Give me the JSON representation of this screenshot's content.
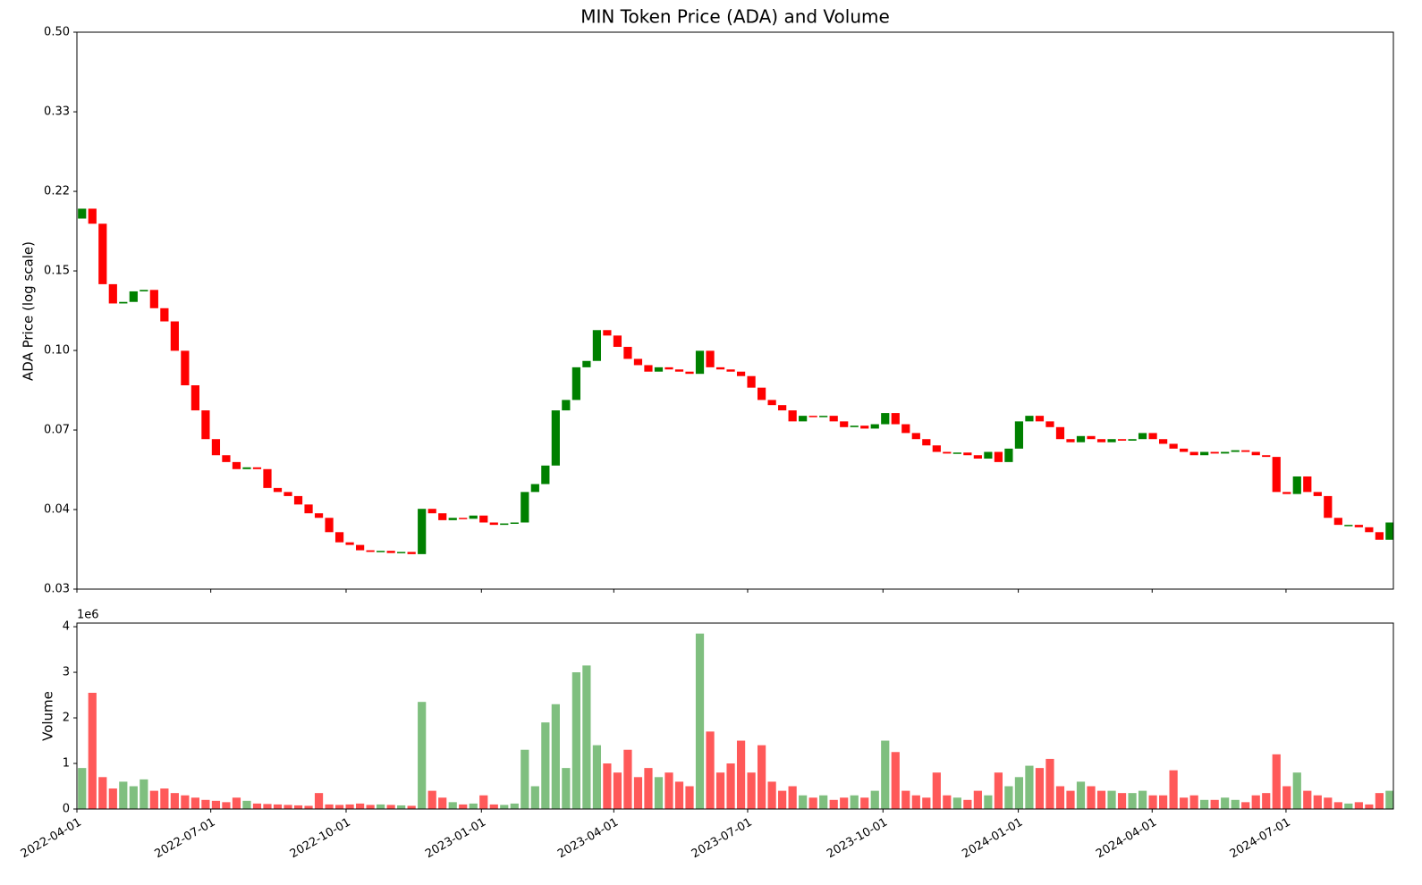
{
  "chart_data": {
    "type": "candlestick",
    "title": "MIN Token Price (ADA) and Volume",
    "ylabel": "ADA Price (log scale)",
    "log_scale": true,
    "up_color": "green",
    "down_color": "red",
    "xlim": [
      "2022-04-01",
      "2024-09-12"
    ],
    "xticks": [
      "2022-04-01",
      "2022-07-01",
      "2022-10-01",
      "2023-01-01",
      "2023-04-01",
      "2023-07-01",
      "2023-10-01",
      "2024-01-01",
      "2024-04-01",
      "2024-07-01"
    ],
    "ylim": [
      0.03,
      0.5
    ],
    "yticks": [
      0.03,
      {
        "value": 0.04484,
        "label": "0.04"
      },
      {
        "value": 0.06701,
        "label": "0.07"
      },
      {
        "value": 0.10016,
        "label": "0.10"
      },
      {
        "value": 0.1497,
        "label": "0.15"
      },
      {
        "value": 0.22374,
        "label": "0.22"
      },
      {
        "value": 0.33441,
        "label": "0.33"
      },
      {
        "value": 0.5,
        "label": "0.50"
      }
    ],
    "x": [
      "2022-04-01",
      "2022-04-08",
      "2022-04-15",
      "2022-04-22",
      "2022-04-29",
      "2022-05-06",
      "2022-05-13",
      "2022-05-20",
      "2022-05-27",
      "2022-06-03",
      "2022-06-10",
      "2022-06-17",
      "2022-06-24",
      "2022-07-01",
      "2022-07-08",
      "2022-07-15",
      "2022-07-22",
      "2022-07-29",
      "2022-08-05",
      "2022-08-12",
      "2022-08-19",
      "2022-08-26",
      "2022-09-02",
      "2022-09-09",
      "2022-09-16",
      "2022-09-23",
      "2022-09-30",
      "2022-10-07",
      "2022-10-14",
      "2022-10-21",
      "2022-10-28",
      "2022-11-04",
      "2022-11-11",
      "2022-11-18",
      "2022-11-25",
      "2022-12-02",
      "2022-12-09",
      "2022-12-16",
      "2022-12-23",
      "2022-12-30",
      "2023-01-06",
      "2023-01-13",
      "2023-01-20",
      "2023-01-27",
      "2023-02-03",
      "2023-02-10",
      "2023-02-17",
      "2023-02-24",
      "2023-03-03",
      "2023-03-10",
      "2023-03-17",
      "2023-03-24",
      "2023-03-31",
      "2023-04-07",
      "2023-04-14",
      "2023-04-21",
      "2023-04-28",
      "2023-05-05",
      "2023-05-12",
      "2023-05-19",
      "2023-05-26",
      "2023-06-02",
      "2023-06-09",
      "2023-06-16",
      "2023-06-23",
      "2023-06-30",
      "2023-07-07",
      "2023-07-14",
      "2023-07-21",
      "2023-07-28",
      "2023-08-04",
      "2023-08-11",
      "2023-08-18",
      "2023-08-25",
      "2023-09-01",
      "2023-09-08",
      "2023-09-15",
      "2023-09-22",
      "2023-09-29",
      "2023-10-06",
      "2023-10-13",
      "2023-10-20",
      "2023-10-27",
      "2023-11-03",
      "2023-11-10",
      "2023-11-17",
      "2023-11-24",
      "2023-12-01",
      "2023-12-08",
      "2023-12-15",
      "2023-12-22",
      "2023-12-29",
      "2024-01-05",
      "2024-01-12",
      "2024-01-19",
      "2024-01-26",
      "2024-02-02",
      "2024-02-09",
      "2024-02-16",
      "2024-02-23",
      "2024-03-01",
      "2024-03-08",
      "2024-03-15",
      "2024-03-22",
      "2024-03-29",
      "2024-04-05",
      "2024-04-12",
      "2024-04-19",
      "2024-04-26",
      "2024-05-03",
      "2024-05-10",
      "2024-05-17",
      "2024-05-24",
      "2024-05-31",
      "2024-06-07",
      "2024-06-14",
      "2024-06-21",
      "2024-06-28",
      "2024-07-05",
      "2024-07-12",
      "2024-07-19",
      "2024-07-26",
      "2024-08-02",
      "2024-08-09",
      "2024-08-16",
      "2024-08-23",
      "2024-08-30",
      "2024-09-06"
    ],
    "open": [
      0.195,
      0.205,
      0.19,
      0.14,
      0.127,
      0.128,
      0.135,
      0.136,
      0.124,
      0.116,
      0.1,
      0.084,
      0.074,
      0.064,
      0.059,
      0.057,
      0.055,
      0.0555,
      0.055,
      0.05,
      0.049,
      0.048,
      0.046,
      0.044,
      0.043,
      0.04,
      0.038,
      0.0375,
      0.0365,
      0.0362,
      0.0364,
      0.036,
      0.0362,
      0.0358,
      0.045,
      0.044,
      0.0425,
      0.043,
      0.0428,
      0.0435,
      0.042,
      0.0415,
      0.0418,
      0.042,
      0.049,
      0.051,
      0.056,
      0.074,
      0.078,
      0.092,
      0.095,
      0.111,
      0.108,
      0.102,
      0.096,
      0.093,
      0.09,
      0.092,
      0.091,
      0.09,
      0.089,
      0.1,
      0.092,
      0.091,
      0.09,
      0.088,
      0.083,
      0.078,
      0.076,
      0.074,
      0.07,
      0.072,
      0.0715,
      0.072,
      0.07,
      0.068,
      0.0685,
      0.0675,
      0.069,
      0.073,
      0.069,
      0.066,
      0.064,
      0.062,
      0.06,
      0.0595,
      0.0598,
      0.059,
      0.058,
      0.06,
      0.057,
      0.061,
      0.07,
      0.072,
      0.07,
      0.068,
      0.064,
      0.063,
      0.065,
      0.064,
      0.063,
      0.064,
      0.0635,
      0.064,
      0.066,
      0.064,
      0.0625,
      0.061,
      0.06,
      0.059,
      0.06,
      0.0595,
      0.06,
      0.0605,
      0.06,
      0.059,
      0.0585,
      0.049,
      0.0485,
      0.053,
      0.049,
      0.048,
      0.043,
      0.0415,
      0.0415,
      0.041,
      0.04,
      0.0385
    ],
    "close": [
      0.205,
      0.19,
      0.14,
      0.127,
      0.128,
      0.135,
      0.136,
      0.124,
      0.116,
      0.1,
      0.084,
      0.074,
      0.064,
      0.059,
      0.057,
      0.055,
      0.0555,
      0.055,
      0.05,
      0.049,
      0.048,
      0.046,
      0.044,
      0.043,
      0.04,
      0.038,
      0.0375,
      0.0365,
      0.0362,
      0.0364,
      0.036,
      0.0362,
      0.0358,
      0.045,
      0.044,
      0.0425,
      0.043,
      0.0428,
      0.0435,
      0.042,
      0.0415,
      0.0418,
      0.042,
      0.049,
      0.051,
      0.056,
      0.074,
      0.078,
      0.092,
      0.095,
      0.111,
      0.108,
      0.102,
      0.096,
      0.093,
      0.09,
      0.092,
      0.091,
      0.09,
      0.089,
      0.1,
      0.092,
      0.091,
      0.09,
      0.088,
      0.083,
      0.078,
      0.076,
      0.074,
      0.07,
      0.072,
      0.0715,
      0.072,
      0.07,
      0.068,
      0.0685,
      0.0675,
      0.069,
      0.073,
      0.069,
      0.066,
      0.064,
      0.062,
      0.06,
      0.0595,
      0.0598,
      0.059,
      0.058,
      0.06,
      0.057,
      0.061,
      0.07,
      0.072,
      0.07,
      0.068,
      0.064,
      0.063,
      0.065,
      0.064,
      0.063,
      0.064,
      0.0635,
      0.064,
      0.066,
      0.064,
      0.0625,
      0.061,
      0.06,
      0.059,
      0.06,
      0.0595,
      0.06,
      0.0605,
      0.06,
      0.059,
      0.0585,
      0.049,
      0.0485,
      0.053,
      0.049,
      0.048,
      0.043,
      0.0415,
      0.0415,
      0.041,
      0.04,
      0.0385,
      0.042
    ],
    "volume": {
      "ylabel": "Volume",
      "offset_label": "1e6",
      "ylim": [
        0,
        4080000
      ],
      "yticks": [
        0,
        {
          "value": 1000000,
          "label": "1"
        },
        {
          "value": 2000000,
          "label": "2"
        },
        {
          "value": 3000000,
          "label": "3"
        },
        {
          "value": 4000000,
          "label": "4"
        }
      ],
      "values": [
        900000,
        2550000,
        700000,
        450000,
        600000,
        500000,
        650000,
        400000,
        450000,
        350000,
        300000,
        250000,
        200000,
        180000,
        150000,
        250000,
        180000,
        120000,
        110000,
        100000,
        90000,
        80000,
        70000,
        350000,
        100000,
        90000,
        100000,
        120000,
        90000,
        100000,
        90000,
        80000,
        70000,
        2350000,
        400000,
        250000,
        150000,
        100000,
        120000,
        300000,
        100000,
        90000,
        120000,
        1300000,
        500000,
        1900000,
        2300000,
        900000,
        3000000,
        3150000,
        1400000,
        1000000,
        800000,
        1300000,
        700000,
        900000,
        700000,
        800000,
        600000,
        500000,
        3850000,
        1700000,
        800000,
        1000000,
        1500000,
        800000,
        1400000,
        600000,
        400000,
        500000,
        300000,
        250000,
        300000,
        200000,
        250000,
        300000,
        250000,
        400000,
        1500000,
        1250000,
        400000,
        300000,
        250000,
        800000,
        300000,
        250000,
        200000,
        400000,
        300000,
        800000,
        500000,
        700000,
        950000,
        900000,
        1100000,
        500000,
        400000,
        600000,
        500000,
        400000,
        400000,
        350000,
        350000,
        400000,
        300000,
        300000,
        850000,
        250000,
        300000,
        200000,
        200000,
        250000,
        200000,
        150000,
        300000,
        350000,
        1200000,
        500000,
        800000,
        400000,
        300000,
        250000,
        150000,
        120000,
        150000,
        100000,
        350000,
        400000
      ]
    }
  }
}
